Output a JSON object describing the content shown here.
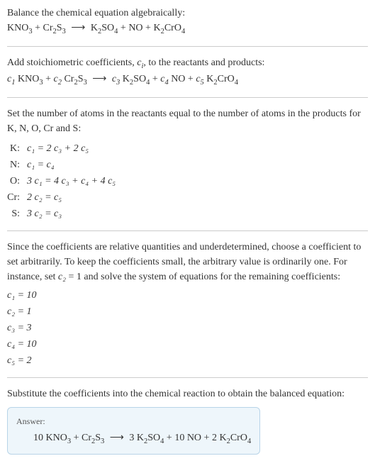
{
  "section1": {
    "intro": "Balance the chemical equation algebraically:",
    "eq_lhs1": "KNO",
    "eq_lhs1_sub": "3",
    "plus1": " + ",
    "eq_lhs2": "Cr",
    "eq_lhs2_sub": "2",
    "eq_lhs2b": "S",
    "eq_lhs2b_sub": "3",
    "arrow": " ⟶ ",
    "eq_rhs1": "K",
    "eq_rhs1_sub": "2",
    "eq_rhs1b": "SO",
    "eq_rhs1b_sub": "4",
    "plus2": " + ",
    "eq_rhs2": "NO",
    "plus3": " + ",
    "eq_rhs3": "K",
    "eq_rhs3_sub": "2",
    "eq_rhs3b": "CrO",
    "eq_rhs3b_sub": "4"
  },
  "section2": {
    "intro_a": "Add stoichiometric coefficients, ",
    "ci": "c",
    "ci_sub": "i",
    "intro_b": ", to the reactants and products:",
    "c1": "c",
    "c1_sub": "1",
    "sp1": " KNO",
    "sp1_sub": "3",
    "plus1": " + ",
    "c2": "c",
    "c2_sub": "2",
    "sp2": " Cr",
    "sp2_sub": "2",
    "sp2b": "S",
    "sp2b_sub": "3",
    "arrow": " ⟶ ",
    "c3": "c",
    "c3_sub": "3",
    "sp3": " K",
    "sp3_sub": "2",
    "sp3b": "SO",
    "sp3b_sub": "4",
    "plus2": " + ",
    "c4": "c",
    "c4_sub": "4",
    "sp4": " NO",
    "plus3": " + ",
    "c5": "c",
    "c5_sub": "5",
    "sp5": " K",
    "sp5_sub": "2",
    "sp5b": "CrO",
    "sp5b_sub": "4"
  },
  "section3": {
    "intro": "Set the number of atoms in the reactants equal to the number of atoms in the products for K, N, O, Cr and S:",
    "rows": [
      {
        "label": "K:",
        "lhs": "c₁",
        "eq": " = 2 c₃ + 2 c₅"
      },
      {
        "label": "N:",
        "lhs": "c₁",
        "eq": " = c₄"
      },
      {
        "label": "O:",
        "lhs": "3 c₁",
        "eq": " = 4 c₃ + c₄ + 4 c₅"
      },
      {
        "label": "Cr:",
        "lhs": "2 c₂",
        "eq": " = c₅"
      },
      {
        "label": "S:",
        "lhs": "3 c₂",
        "eq": " = c₃"
      }
    ]
  },
  "section4": {
    "intro_a": "Since the coefficients are relative quantities and underdetermined, choose a coefficient to set arbitrarily. To keep the coefficients small, the arbitrary value is ordinarily one. For instance, set ",
    "c2": "c₂",
    "intro_b": " = 1 and solve the system of equations for the remaining coefficients:",
    "coeffs": [
      "c₁ = 10",
      "c₂ = 1",
      "c₃ = 3",
      "c₄ = 10",
      "c₅ = 2"
    ]
  },
  "section5": {
    "intro": "Substitute the coefficients into the chemical reaction to obtain the balanced equation:",
    "answer_label": "Answer:",
    "a1": "10 KNO",
    "a1_sub": "3",
    "plus1": " + ",
    "a2": "Cr",
    "a2_sub": "2",
    "a2b": "S",
    "a2b_sub": "3",
    "arrow": " ⟶ ",
    "a3": "3 K",
    "a3_sub": "2",
    "a3b": "SO",
    "a3b_sub": "4",
    "plus2": " + ",
    "a4": "10 NO",
    "plus3": " + ",
    "a5": "2 K",
    "a5_sub": "2",
    "a5b": "CrO",
    "a5b_sub": "4"
  },
  "colors": {
    "text": "#333333",
    "hr": "#cccccc",
    "answer_bg": "#eef6fb",
    "answer_border": "#b8d4e8"
  }
}
